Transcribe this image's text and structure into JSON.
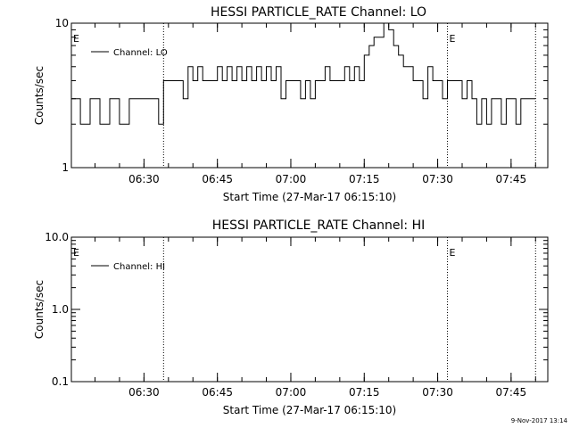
{
  "footer_stamp": "9-Nov-2017 13:14",
  "chart_data": [
    {
      "type": "line",
      "title": "HESSI PARTICLE_RATE Channel: LO",
      "xlabel": "Start Time (27-Mar-17 06:15:10)",
      "ylabel": "Counts/sec",
      "yscale": "log",
      "ylim": [
        1,
        10
      ],
      "y_ticks": [
        "1",
        "10"
      ],
      "xlim": [
        "06:15:10",
        "07:52:30"
      ],
      "x_ticks": [
        "06:30",
        "06:45",
        "07:00",
        "07:15",
        "07:30",
        "07:45"
      ],
      "grid": false,
      "legend": "top-left",
      "vertical_markers": [
        "06:34",
        "07:32",
        "07:50"
      ],
      "event_labels": [
        "E",
        "E"
      ],
      "series": [
        {
          "name": "Channel: LO",
          "x": [
            "06:15:10",
            "06:17:00",
            "06:19:00",
            "06:21:00",
            "06:23:00",
            "06:25:00",
            "06:27:00",
            "06:29:00",
            "06:31:00",
            "06:33:00",
            "06:34:00",
            "06:35:00",
            "06:36:00",
            "06:37:00",
            "06:38:00",
            "06:39:00",
            "06:40:00",
            "06:41:00",
            "06:42:00",
            "06:43:00",
            "06:44:00",
            "06:45:00",
            "06:46:00",
            "06:47:00",
            "06:48:00",
            "06:49:00",
            "06:50:00",
            "06:51:00",
            "06:52:00",
            "06:53:00",
            "06:54:00",
            "06:55:00",
            "06:56:00",
            "06:57:00",
            "06:58:00",
            "06:59:00",
            "07:00:00",
            "07:01:00",
            "07:02:00",
            "07:03:00",
            "07:04:00",
            "07:05:00",
            "07:06:00",
            "07:07:00",
            "07:08:00",
            "07:09:00",
            "07:10:00",
            "07:11:00",
            "07:12:00",
            "07:13:00",
            "07:14:00",
            "07:15:00",
            "07:16:00",
            "07:17:00",
            "07:18:00",
            "07:19:00",
            "07:20:00",
            "07:21:00",
            "07:22:00",
            "07:23:00",
            "07:24:00",
            "07:25:00",
            "07:26:00",
            "07:27:00",
            "07:28:00",
            "07:29:00",
            "07:30:00",
            "07:31:00",
            "07:32:00",
            "07:33:00",
            "07:34:00",
            "07:35:00",
            "07:36:00",
            "07:37:00",
            "07:38:00",
            "07:39:00",
            "07:40:00",
            "07:41:00",
            "07:42:00",
            "07:43:00",
            "07:44:00",
            "07:45:00",
            "07:46:00",
            "07:47:00",
            "07:48:00",
            "07:49:00",
            "07:50:00"
          ],
          "values": [
            3,
            2,
            3,
            2,
            3,
            2,
            3,
            3,
            3,
            2,
            4,
            4,
            4,
            4,
            3,
            5,
            4,
            5,
            4,
            4,
            4,
            5,
            4,
            5,
            4,
            5,
            4,
            5,
            4,
            5,
            4,
            5,
            4,
            5,
            3,
            4,
            4,
            4,
            3,
            4,
            3,
            4,
            4,
            5,
            4,
            4,
            4,
            5,
            4,
            5,
            4,
            6,
            7,
            8,
            8,
            10,
            9,
            7,
            6,
            5,
            5,
            4,
            4,
            3,
            5,
            4,
            4,
            3,
            4,
            4,
            4,
            3,
            4,
            3,
            2,
            3,
            2,
            3,
            3,
            2,
            3,
            3,
            2,
            3,
            3,
            3,
            3
          ]
        }
      ]
    },
    {
      "type": "line",
      "title": "HESSI PARTICLE_RATE Channel: HI",
      "xlabel": "Start Time (27-Mar-17 06:15:10)",
      "ylabel": "Counts/sec",
      "yscale": "log",
      "ylim": [
        0.1,
        10.0
      ],
      "y_ticks": [
        "0.1",
        "1.0",
        "10.0"
      ],
      "xlim": [
        "06:15:10",
        "07:52:30"
      ],
      "x_ticks": [
        "06:30",
        "06:45",
        "07:00",
        "07:15",
        "07:30",
        "07:45"
      ],
      "grid": false,
      "legend": "top-left",
      "vertical_markers": [
        "06:34",
        "07:32",
        "07:50"
      ],
      "event_labels": [
        "E",
        "E"
      ],
      "series": [
        {
          "name": "Channel: HI",
          "x": [],
          "values": []
        }
      ]
    }
  ]
}
